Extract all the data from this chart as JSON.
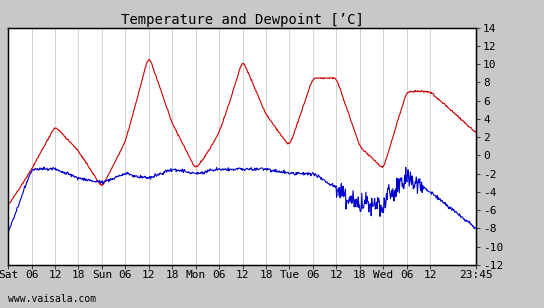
{
  "title": "Temperature and Dewpoint [’C]",
  "ylim": [
    -12,
    14
  ],
  "yticks": [
    -12,
    -10,
    -8,
    -6,
    -4,
    -2,
    0,
    2,
    4,
    6,
    8,
    10,
    12,
    14
  ],
  "x_tick_positions": [
    0,
    6,
    12,
    18,
    24,
    30,
    36,
    42,
    48,
    54,
    60,
    66,
    72,
    78,
    84,
    90,
    96,
    102,
    108,
    119.75
  ],
  "x_tick_labels": [
    "Sat",
    "06",
    "12",
    "18",
    "Sun",
    "06",
    "12",
    "18",
    "Mon",
    "06",
    "12",
    "18",
    "Tue",
    "06",
    "12",
    "18",
    "Wed",
    "06",
    "12",
    "23:45"
  ],
  "total_hours": 119.75,
  "outer_bg": "#c8c8c8",
  "plot_bg": "#ffffff",
  "grid_color": "#cccccc",
  "temp_color": "#cc0000",
  "dewpoint_color": "#0000cc",
  "line_width": 0.8,
  "title_fontsize": 10,
  "tick_fontsize": 8,
  "watermark": "www.vaisala.com",
  "temp_ctrl_t": [
    0,
    6,
    12,
    18,
    24,
    30,
    36,
    42,
    48,
    54,
    60,
    66,
    72,
    78,
    84,
    90,
    96,
    102,
    108,
    119.75
  ],
  "temp_ctrl_v": [
    -5.5,
    -1.5,
    3.2,
    0.5,
    -3.5,
    1.5,
    11.0,
    3.5,
    -1.5,
    2.0,
    10.5,
    4.5,
    1.0,
    8.5,
    8.5,
    1.0,
    -1.5,
    7.0,
    7.0,
    2.5
  ],
  "dew_ctrl_t": [
    0,
    6,
    12,
    18,
    24,
    30,
    36,
    42,
    48,
    54,
    60,
    66,
    72,
    78,
    84,
    90,
    96,
    102,
    108,
    119.75
  ],
  "dew_ctrl_v": [
    -8.5,
    -1.5,
    -1.5,
    -2.5,
    -3.0,
    -2.0,
    -2.5,
    -1.5,
    -2.0,
    -1.5,
    -1.5,
    -1.5,
    -2.0,
    -2.0,
    -3.5,
    -5.5,
    -5.0,
    -2.5,
    -4.0,
    -8.0
  ]
}
